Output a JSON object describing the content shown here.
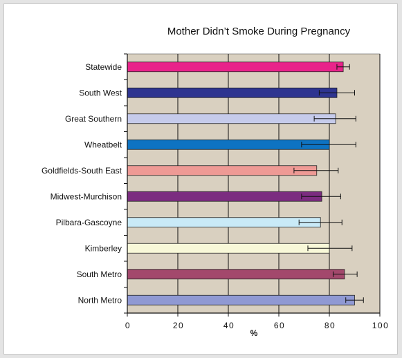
{
  "chart_data": {
    "type": "bar",
    "orientation": "horizontal",
    "title": "Mother Didn’t Smoke During Pregnancy",
    "xlabel": "%",
    "ylabel": "",
    "xlim": [
      0,
      100
    ],
    "xticks": [
      "0",
      "20",
      "40",
      "60",
      "80",
      "100"
    ],
    "grid": true,
    "categories": [
      "Statewide",
      "South West",
      "Great Southern",
      "Wheatbelt",
      "Goldfields-South East",
      "Midwest-Murchison",
      "Pilbara-Gascoyne",
      "Kimberley",
      "South Metro",
      "North Metro"
    ],
    "values": [
      85.5,
      83,
      82.5,
      80,
      75,
      77,
      76.5,
      80,
      86,
      90
    ],
    "error_low": [
      83,
      76,
      74,
      69,
      66,
      69,
      68,
      71.5,
      81.5,
      86.5
    ],
    "error_high": [
      88,
      90,
      90.5,
      90.5,
      83.5,
      84.5,
      85,
      89,
      91,
      93.5
    ],
    "colors": [
      "#e8238a",
      "#2e3490",
      "#c6cbeb",
      "#0e73c2",
      "#ee9a95",
      "#7b2c80",
      "#c9eaf7",
      "#f8f8d8",
      "#a3486c",
      "#9099d3"
    ],
    "plot_background": "#d9d0c0"
  }
}
